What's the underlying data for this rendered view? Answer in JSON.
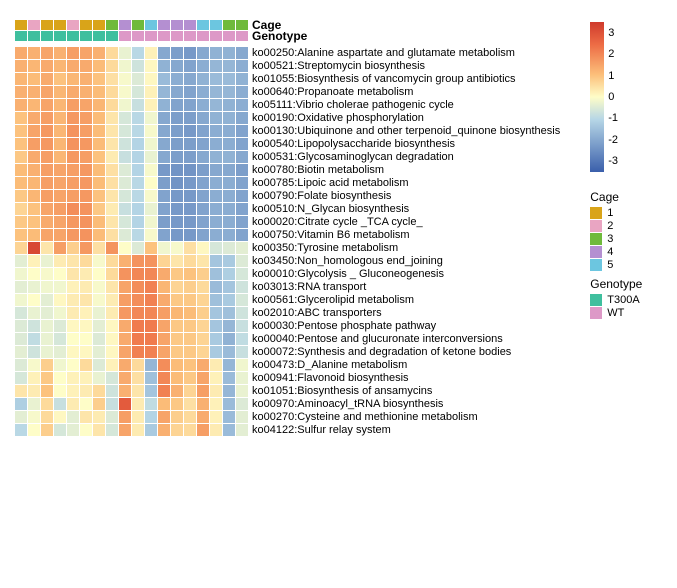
{
  "dims": {
    "rows": 30,
    "cols": 18
  },
  "annotation_tracks": [
    {
      "name": "Cage",
      "label": "Cage"
    },
    {
      "name": "Genotype",
      "label": "Genotype"
    }
  ],
  "cage_legend": {
    "title": "Cage",
    "items": [
      {
        "label": "1",
        "color": "#d9a419"
      },
      {
        "label": "2",
        "color": "#e9a5c2"
      },
      {
        "label": "3",
        "color": "#6fba3b"
      },
      {
        "label": "4",
        "color": "#b48fd1"
      },
      {
        "label": "5",
        "color": "#6cc6e0"
      }
    ]
  },
  "genotype_legend": {
    "title": "Genotype",
    "items": [
      {
        "label": "T300A",
        "color": "#3fbf9e"
      },
      {
        "label": "WT",
        "color": "#dd99c7"
      }
    ]
  },
  "cage_row": [
    1,
    2,
    1,
    1,
    2,
    1,
    1,
    3,
    4,
    3,
    5,
    4,
    4,
    4,
    5,
    5,
    3,
    3
  ],
  "genotype_row": [
    0,
    0,
    0,
    0,
    0,
    0,
    0,
    0,
    1,
    1,
    1,
    1,
    1,
    1,
    1,
    1,
    1,
    1
  ],
  "row_labels": [
    "ko00250:Alanine aspartate and glutamate metabolism",
    "ko00521:Streptomycin biosynthesis",
    "ko01055:Biosynthesis of vancomycin group antibiotics",
    "ko00640:Propanoate metabolism",
    "ko05111:Vibrio cholerae pathogenic cycle",
    "ko00190:Oxidative phosphorylation",
    "ko00130:Ubiquinone and other terpenoid_quinone biosynthesis",
    "ko00540:Lipopolysaccharide biosynthesis",
    "ko00531:Glycosaminoglycan degradation",
    "ko00780:Biotin metabolism",
    "ko00785:Lipoic acid metabolism",
    "ko00790:Folate biosynthesis",
    "ko00510:N_Glycan biosynthesis",
    "ko00020:Citrate cycle _TCA cycle_",
    "ko00750:Vitamin B6 metabolism",
    "ko00350:Tyrosine metabolism",
    "ko03450:Non_homologous end_joining",
    "ko00010:Glycolysis _ Gluconeogenesis",
    "ko03013:RNA transport",
    "ko00561:Glycerolipid metabolism",
    "ko02010:ABC transporters",
    "ko00030:Pentose phosphate pathway",
    "ko00040:Pentose and glucuronate interconversions",
    "ko00072:Synthesis and degradation of ketone bodies",
    "ko00473:D_Alanine metabolism",
    "ko00941:Flavonoid biosynthesis",
    "ko01051:Biosynthesis of ansamycins",
    "ko00970:Aminoacyl_tRNA biosynthesis",
    "ko00270:Cysteine and methionine metabolism",
    "ko04122:Sulfur relay system"
  ],
  "colorscale": {
    "min": -3.5,
    "max": 3.5,
    "ticks": [
      3,
      2,
      1,
      0,
      -1,
      -2,
      -3
    ],
    "stops": [
      {
        "p": 0,
        "c": "#3a5fab"
      },
      {
        "p": 35,
        "c": "#b6d6e6"
      },
      {
        "p": 50,
        "c": "#fefdc8"
      },
      {
        "p": 65,
        "c": "#fcbf7a"
      },
      {
        "p": 85,
        "c": "#ed6c45"
      },
      {
        "p": 100,
        "c": "#cf3a2c"
      }
    ]
  },
  "heatmap": [
    [
      1.4,
      1.3,
      1.5,
      1.3,
      1.6,
      1.5,
      1.3,
      0.6,
      -0.3,
      -1.0,
      0.2,
      -2.0,
      -2.2,
      -2.3,
      -2.0,
      -1.8,
      -1.8,
      -2.0
    ],
    [
      1.3,
      1.2,
      1.4,
      1.2,
      1.4,
      1.4,
      1.1,
      0.6,
      -0.2,
      -0.7,
      0.1,
      -1.8,
      -2.0,
      -2.1,
      -1.9,
      -1.7,
      -1.7,
      -1.9
    ],
    [
      1.2,
      1.1,
      1.4,
      1.0,
      1.2,
      1.3,
      1.0,
      0.5,
      -0.1,
      -0.5,
      0.1,
      -1.6,
      -1.9,
      -2.0,
      -1.8,
      -1.6,
      -1.6,
      -1.8
    ],
    [
      1.3,
      1.3,
      1.5,
      1.2,
      1.4,
      1.3,
      1.1,
      0.6,
      -0.1,
      -0.6,
      0.2,
      -1.7,
      -2.0,
      -2.1,
      -1.9,
      -1.7,
      -1.7,
      -1.9
    ],
    [
      1.3,
      1.2,
      1.5,
      1.2,
      1.6,
      1.5,
      1.2,
      0.6,
      -0.2,
      -0.8,
      0.2,
      -1.8,
      -2.1,
      -2.1,
      -1.9,
      -1.7,
      -1.8,
      -1.9
    ],
    [
      1.0,
      1.4,
      1.6,
      1.2,
      1.7,
      1.6,
      1.1,
      0.4,
      -0.6,
      -1.0,
      -0.2,
      -2.0,
      -2.2,
      -2.2,
      -2.0,
      -1.8,
      -1.8,
      -2.0
    ],
    [
      1.0,
      1.5,
      1.7,
      1.2,
      1.8,
      1.6,
      1.1,
      0.4,
      -0.6,
      -1.0,
      -0.1,
      -2.0,
      -2.2,
      -2.3,
      -2.1,
      -1.9,
      -1.9,
      -2.1
    ],
    [
      1.0,
      1.6,
      1.7,
      1.2,
      1.8,
      1.7,
      1.1,
      0.4,
      -0.7,
      -1.1,
      -0.2,
      -2.0,
      -2.2,
      -2.2,
      -2.1,
      -1.9,
      -1.9,
      -2.1
    ],
    [
      0.9,
      1.4,
      1.6,
      1.2,
      1.7,
      1.6,
      1.0,
      0.3,
      -0.8,
      -1.1,
      -0.3,
      -2.0,
      -2.2,
      -2.2,
      -2.0,
      -1.8,
      -1.8,
      -2.0
    ],
    [
      1.1,
      1.3,
      1.6,
      1.5,
      1.6,
      1.7,
      1.1,
      0.5,
      -0.5,
      -1.1,
      -0.1,
      -2.3,
      -2.4,
      -2.4,
      -2.2,
      -2.0,
      -2.0,
      -2.2
    ],
    [
      1.1,
      1.2,
      1.6,
      1.5,
      1.6,
      1.7,
      1.1,
      0.5,
      -0.5,
      -1.0,
      0.0,
      -2.2,
      -2.4,
      -2.3,
      -2.1,
      -1.9,
      -1.9,
      -2.1
    ],
    [
      0.9,
      1.2,
      1.6,
      1.5,
      1.6,
      1.7,
      1.0,
      0.4,
      -0.6,
      -1.0,
      -0.1,
      -2.1,
      -2.3,
      -2.3,
      -2.1,
      -1.9,
      -1.9,
      -2.1
    ],
    [
      0.7,
      1.0,
      1.5,
      1.6,
      1.9,
      1.8,
      0.9,
      0.3,
      -0.8,
      -1.1,
      -0.3,
      -2.1,
      -2.3,
      -2.3,
      -2.1,
      -1.9,
      -1.9,
      -2.1
    ],
    [
      0.9,
      1.0,
      1.4,
      1.5,
      1.7,
      1.8,
      1.1,
      0.4,
      -0.6,
      -1.1,
      -0.2,
      -2.2,
      -2.3,
      -2.3,
      -2.1,
      -1.9,
      -1.9,
      -2.1
    ],
    [
      1.0,
      1.1,
      1.5,
      1.5,
      1.7,
      1.8,
      1.1,
      0.5,
      -0.5,
      -1.0,
      -0.1,
      -2.1,
      -2.3,
      -2.3,
      -2.1,
      -1.9,
      -1.9,
      -2.1
    ],
    [
      0.7,
      3.2,
      0.4,
      1.6,
      0.8,
      1.7,
      0.5,
      1.8,
      0.0,
      -0.5,
      1.0,
      -0.2,
      -0.1,
      0.5,
      0.1,
      -0.6,
      -0.5,
      -0.4
    ],
    [
      -0.4,
      0.2,
      -0.3,
      0.3,
      0.4,
      0.6,
      -0.1,
      0.6,
      1.3,
      1.8,
      1.8,
      0.7,
      0.4,
      0.6,
      0.4,
      -1.4,
      -1.3,
      -0.5
    ],
    [
      -0.2,
      0.0,
      -0.1,
      0.0,
      0.4,
      0.3,
      0.0,
      0.6,
      1.8,
      2.0,
      2.0,
      1.4,
      0.9,
      1.0,
      0.8,
      -1.5,
      -1.2,
      -0.6
    ],
    [
      -0.4,
      -0.3,
      -0.2,
      -0.2,
      0.2,
      0.3,
      -0.1,
      0.4,
      1.5,
      1.9,
      2.1,
      1.2,
      0.7,
      0.8,
      0.6,
      -1.6,
      -1.4,
      -0.7
    ],
    [
      -0.2,
      0.0,
      -0.4,
      0.1,
      0.3,
      0.4,
      -0.1,
      0.3,
      1.6,
      1.9,
      2.1,
      1.4,
      0.9,
      0.9,
      0.7,
      -1.5,
      -1.3,
      -0.6
    ],
    [
      -0.6,
      -0.3,
      -0.4,
      -0.2,
      0.3,
      0.2,
      -0.3,
      0.3,
      1.7,
      2.0,
      2.0,
      1.6,
      1.2,
      1.1,
      0.8,
      -1.4,
      -1.5,
      -0.7
    ],
    [
      -0.5,
      -0.7,
      -0.3,
      -0.5,
      0.1,
      0.1,
      -0.4,
      0.1,
      1.4,
      2.2,
      2.2,
      1.5,
      0.9,
      0.9,
      0.7,
      -1.4,
      -1.7,
      -0.8
    ],
    [
      -0.5,
      -0.9,
      -0.3,
      -0.6,
      0.0,
      0.0,
      -0.5,
      0.1,
      1.4,
      2.2,
      2.2,
      1.5,
      0.9,
      0.9,
      0.7,
      -1.3,
      -1.8,
      -0.9
    ],
    [
      -0.4,
      -0.7,
      -0.3,
      -0.4,
      0.1,
      0.1,
      -0.4,
      0.1,
      1.5,
      2.1,
      2.1,
      1.5,
      0.9,
      0.9,
      0.7,
      -1.3,
      -1.6,
      -0.8
    ],
    [
      -0.5,
      -0.1,
      0.8,
      -0.2,
      0.0,
      0.6,
      -0.5,
      0.2,
      1.4,
      0.6,
      -1.7,
      1.9,
      1.1,
      1.0,
      1.4,
      0.3,
      -1.7,
      -0.2
    ],
    [
      -0.6,
      0.2,
      0.9,
      0.0,
      0.2,
      0.2,
      -0.3,
      -0.6,
      1.4,
      0.5,
      -1.5,
      2.0,
      1.1,
      0.9,
      1.5,
      0.2,
      -1.6,
      -0.3
    ],
    [
      0.4,
      0.3,
      1.0,
      0.0,
      0.2,
      0.3,
      0.6,
      -0.7,
      1.3,
      0.4,
      -1.4,
      2.1,
      1.3,
      0.7,
      1.6,
      0.3,
      -1.7,
      -0.3
    ],
    [
      -1.2,
      -0.3,
      0.6,
      -0.8,
      0.3,
      0.0,
      0.8,
      -0.8,
      2.8,
      0.3,
      -0.9,
      1.1,
      0.9,
      0.5,
      1.3,
      0.2,
      -1.6,
      -0.5
    ],
    [
      -0.4,
      -0.1,
      0.6,
      0.1,
      -0.4,
      0.4,
      0.3,
      -0.5,
      1.6,
      0.3,
      -1.1,
      1.5,
      0.8,
      0.6,
      1.4,
      0.2,
      -1.6,
      -0.4
    ],
    [
      -1.0,
      0.0,
      0.8,
      -0.6,
      -0.4,
      0.0,
      0.4,
      -0.6,
      1.5,
      0.3,
      -1.3,
      1.3,
      0.7,
      0.6,
      1.6,
      0.3,
      -1.6,
      -0.4
    ]
  ]
}
